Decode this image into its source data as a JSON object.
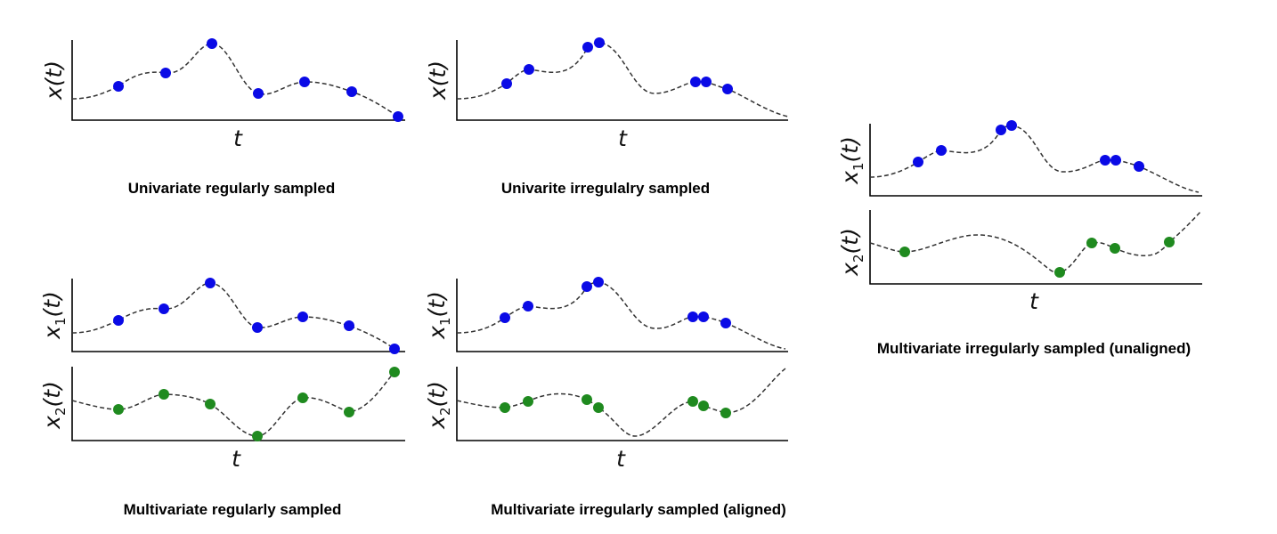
{
  "colors": {
    "series1": "#0a0ae6",
    "series2": "#1f8a1f",
    "curve": "#333333",
    "axis": "#000000"
  },
  "labels": {
    "x": "x(t)",
    "x1": "x1(t)",
    "x2": "x2(t)",
    "t": "t",
    "var_x": "x",
    "sub_1": "1",
    "sub_2": "2",
    "paren_t": "(t)"
  },
  "panels": [
    {
      "id": "univ-reg",
      "caption": "Univariate regularly sampled"
    },
    {
      "id": "univ-irreg",
      "caption": "Univarite irregulalry sampled"
    },
    {
      "id": "multi-reg",
      "caption": "Multivariate regularly sampled"
    },
    {
      "id": "multi-irreg-aligned",
      "caption": "Multivariate irregularly sampled (aligned)"
    },
    {
      "id": "multi-irreg-unaligned",
      "caption": "Multivariate irregularly sampled (unaligned)"
    }
  ]
}
